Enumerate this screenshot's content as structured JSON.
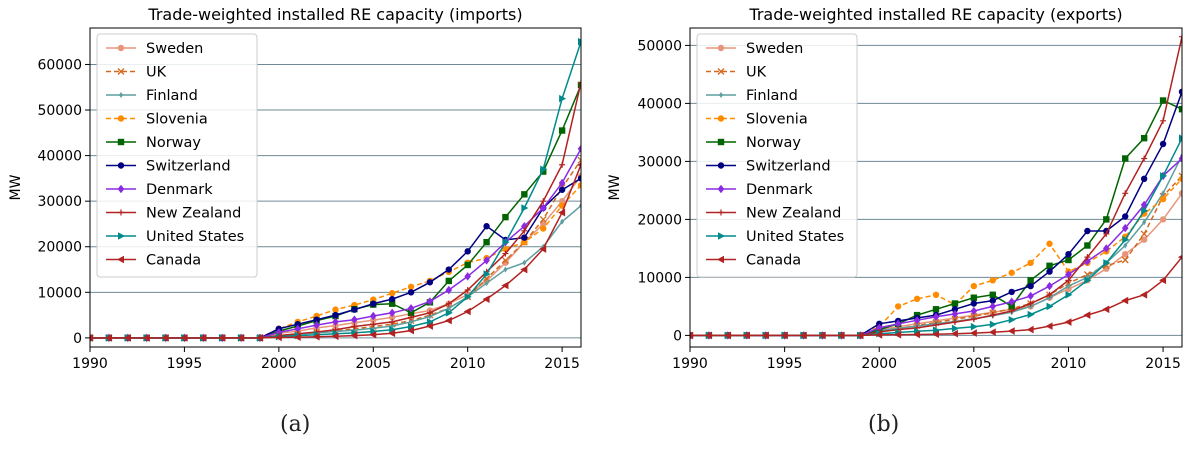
{
  "chart_data": [
    {
      "type": "line",
      "title": "Trade-weighted installed RE capacity (imports)",
      "ylabel": "MW",
      "xlim": [
        1990,
        2016
      ],
      "ylim": [
        -2000,
        68000
      ],
      "xticks": [
        1990,
        1995,
        2000,
        2005,
        2010,
        2015
      ],
      "yticks": [
        0,
        10000,
        20000,
        30000,
        40000,
        50000,
        60000
      ],
      "grid": "horizontal",
      "legend": "top-left",
      "x": [
        1990,
        1991,
        1992,
        1993,
        1994,
        1995,
        1996,
        1997,
        1998,
        1999,
        2000,
        2001,
        2002,
        2003,
        2004,
        2005,
        2006,
        2007,
        2008,
        2009,
        2010,
        2011,
        2012,
        2013,
        2014,
        2015,
        2016
      ],
      "series": [
        {
          "name": "Sweden",
          "color": "#e8967a",
          "marker": "circle",
          "dash": false,
          "values": [
            0,
            0,
            0,
            0,
            0,
            0,
            0,
            0,
            0,
            0,
            1000,
            1500,
            2200,
            2700,
            3300,
            3900,
            4500,
            5300,
            6000,
            7500,
            9500,
            12500,
            16500,
            21000,
            25000,
            30000,
            35500
          ]
        },
        {
          "name": "UK",
          "color": "#d2691e",
          "marker": "x",
          "dash": true,
          "values": [
            0,
            0,
            0,
            0,
            0,
            0,
            0,
            0,
            0,
            0,
            500,
            800,
            1200,
            1500,
            2000,
            2500,
            3000,
            3800,
            5000,
            6500,
            9000,
            13000,
            17000,
            21000,
            26000,
            33000,
            39000
          ]
        },
        {
          "name": "Finland",
          "color": "#5f9ea0",
          "marker": "diamond-thin",
          "dash": false,
          "values": [
            0,
            0,
            0,
            0,
            0,
            0,
            0,
            0,
            0,
            0,
            500,
            800,
            1100,
            1400,
            1700,
            2100,
            2600,
            3500,
            4700,
            6500,
            9000,
            12000,
            15000,
            16500,
            20000,
            25500,
            29000
          ]
        },
        {
          "name": "Slovenia",
          "color": "#ff8c00",
          "marker": "circle",
          "dash": true,
          "values": [
            0,
            0,
            0,
            0,
            0,
            0,
            0,
            0,
            0,
            0,
            2000,
            3500,
            4800,
            6200,
            7200,
            8400,
            9800,
            11200,
            12500,
            14500,
            16500,
            17500,
            19500,
            21000,
            24000,
            29000,
            33500
          ]
        },
        {
          "name": "Norway",
          "color": "#006400",
          "marker": "square",
          "dash": false,
          "values": [
            0,
            0,
            0,
            0,
            0,
            0,
            0,
            0,
            0,
            0,
            1500,
            2600,
            3800,
            4800,
            6300,
            7300,
            7500,
            5500,
            7800,
            12500,
            16000,
            21000,
            26500,
            31500,
            36500,
            45500,
            55500
          ]
        },
        {
          "name": "Switzerland",
          "color": "#000080",
          "marker": "circle",
          "dash": false,
          "values": [
            0,
            0,
            0,
            0,
            0,
            0,
            0,
            0,
            0,
            0,
            2000,
            3000,
            4000,
            5000,
            6200,
            7500,
            8500,
            10000,
            12200,
            15000,
            19000,
            24500,
            21500,
            22000,
            28500,
            32500,
            35000
          ]
        },
        {
          "name": "Denmark",
          "color": "#8a2be2",
          "marker": "diamond",
          "dash": false,
          "values": [
            0,
            0,
            0,
            0,
            0,
            0,
            0,
            0,
            0,
            0,
            1200,
            2000,
            2800,
            3500,
            4000,
            4800,
            5500,
            6500,
            8000,
            10500,
            13500,
            17000,
            21000,
            24500,
            28500,
            34000,
            41500
          ]
        },
        {
          "name": "New Zealand",
          "color": "#b22222",
          "marker": "plus",
          "dash": false,
          "values": [
            0,
            0,
            0,
            0,
            0,
            0,
            0,
            0,
            0,
            0,
            500,
            900,
            1300,
            1800,
            2500,
            3000,
            3500,
            4500,
            5500,
            7500,
            10500,
            14500,
            18500,
            23500,
            30000,
            38000,
            56000
          ]
        },
        {
          "name": "United States",
          "color": "#008b8b",
          "marker": "triangle-right",
          "dash": false,
          "values": [
            0,
            0,
            0,
            0,
            0,
            0,
            0,
            0,
            0,
            0,
            300,
            500,
            700,
            900,
            1100,
            1400,
            1800,
            2500,
            3500,
            5500,
            9000,
            14000,
            21000,
            28500,
            37000,
            52500,
            65000
          ]
        },
        {
          "name": "Canada",
          "color": "#b22222",
          "marker": "triangle-left",
          "dash": false,
          "values": [
            0,
            0,
            0,
            0,
            0,
            0,
            0,
            0,
            0,
            0,
            100,
            150,
            250,
            350,
            500,
            700,
            1000,
            1600,
            2600,
            3800,
            5800,
            8500,
            11500,
            15000,
            19500,
            27500,
            38000
          ]
        }
      ]
    },
    {
      "type": "line",
      "title": "Trade-weighted installed RE capacity (exports)",
      "ylabel": "MW",
      "xlim": [
        1990,
        2016
      ],
      "ylim": [
        -2000,
        53000
      ],
      "xticks": [
        1990,
        1995,
        2000,
        2005,
        2010,
        2015
      ],
      "yticks": [
        0,
        10000,
        20000,
        30000,
        40000,
        50000
      ],
      "grid": "horizontal",
      "legend": "top-left",
      "x": [
        1990,
        1991,
        1992,
        1993,
        1994,
        1995,
        1996,
        1997,
        1998,
        1999,
        2000,
        2001,
        2002,
        2003,
        2004,
        2005,
        2006,
        2007,
        2008,
        2009,
        2010,
        2011,
        2012,
        2013,
        2014,
        2015,
        2016
      ],
      "series": [
        {
          "name": "Sweden",
          "color": "#e8967a",
          "marker": "circle",
          "dash": false,
          "values": [
            0,
            0,
            0,
            0,
            0,
            0,
            0,
            0,
            0,
            0,
            1000,
            1500,
            2000,
            2500,
            3000,
            3500,
            4000,
            4500,
            5000,
            6500,
            8000,
            9500,
            11500,
            14000,
            16500,
            20000,
            24500
          ]
        },
        {
          "name": "UK",
          "color": "#d2691e",
          "marker": "x",
          "dash": true,
          "values": [
            0,
            0,
            0,
            0,
            0,
            0,
            0,
            0,
            0,
            0,
            800,
            1200,
            1700,
            2200,
            2800,
            3300,
            3900,
            4600,
            5500,
            7000,
            9000,
            10500,
            12000,
            13000,
            17500,
            24000,
            27500
          ]
        },
        {
          "name": "Finland",
          "color": "#5f9ea0",
          "marker": "diamond-thin",
          "dash": false,
          "values": [
            0,
            0,
            0,
            0,
            0,
            0,
            0,
            0,
            0,
            0,
            800,
            1200,
            1600,
            2000,
            2400,
            2900,
            3400,
            4000,
            5000,
            6500,
            8500,
            10000,
            12500,
            15500,
            19500,
            24500,
            31000
          ]
        },
        {
          "name": "Slovenia",
          "color": "#ff8c00",
          "marker": "circle",
          "dash": true,
          "values": [
            0,
            0,
            0,
            0,
            0,
            0,
            0,
            0,
            0,
            0,
            1500,
            5000,
            6300,
            7000,
            5300,
            8500,
            9500,
            10800,
            12500,
            15800,
            11000,
            12500,
            14500,
            17000,
            21000,
            23500,
            27000
          ]
        },
        {
          "name": "Norway",
          "color": "#006400",
          "marker": "square",
          "dash": false,
          "values": [
            0,
            0,
            0,
            0,
            0,
            0,
            0,
            0,
            0,
            0,
            1000,
            2000,
            3500,
            4500,
            5500,
            6500,
            7000,
            5000,
            9500,
            12000,
            13000,
            15500,
            20000,
            30500,
            34000,
            40500,
            39000
          ]
        },
        {
          "name": "Switzerland",
          "color": "#000080",
          "marker": "circle",
          "dash": false,
          "values": [
            0,
            0,
            0,
            0,
            0,
            0,
            0,
            0,
            0,
            0,
            2000,
            2500,
            3000,
            3500,
            4500,
            5500,
            6000,
            7500,
            8500,
            11000,
            14000,
            18000,
            18000,
            20500,
            27000,
            33000,
            42000
          ]
        },
        {
          "name": "Denmark",
          "color": "#8a2be2",
          "marker": "diamond",
          "dash": false,
          "values": [
            0,
            0,
            0,
            0,
            0,
            0,
            0,
            0,
            0,
            0,
            1300,
            2000,
            2600,
            3200,
            3700,
            4200,
            5000,
            5800,
            6800,
            8500,
            10500,
            12800,
            15000,
            18500,
            22500,
            27500,
            30500
          ]
        },
        {
          "name": "New Zealand",
          "color": "#b22222",
          "marker": "plus",
          "dash": false,
          "values": [
            0,
            0,
            0,
            0,
            0,
            0,
            0,
            0,
            0,
            0,
            600,
            1000,
            1300,
            1800,
            2300,
            2800,
            3500,
            4200,
            5500,
            7000,
            9500,
            13500,
            17500,
            24500,
            30500,
            37000,
            51500
          ]
        },
        {
          "name": "United States",
          "color": "#008b8b",
          "marker": "triangle-right",
          "dash": false,
          "values": [
            0,
            0,
            0,
            0,
            0,
            0,
            0,
            0,
            0,
            0,
            300,
            500,
            700,
            900,
            1200,
            1500,
            1900,
            2700,
            3600,
            5000,
            7000,
            9500,
            12500,
            16500,
            21500,
            27500,
            34000
          ]
        },
        {
          "name": "Canada",
          "color": "#b22222",
          "marker": "triangle-left",
          "dash": false,
          "values": [
            0,
            0,
            0,
            0,
            0,
            0,
            0,
            0,
            0,
            0,
            80,
            120,
            160,
            200,
            300,
            400,
            550,
            750,
            1000,
            1600,
            2300,
            3500,
            4500,
            6000,
            7000,
            9500,
            13500
          ]
        }
      ]
    }
  ],
  "captions": [
    "(a)",
    "(b)"
  ]
}
